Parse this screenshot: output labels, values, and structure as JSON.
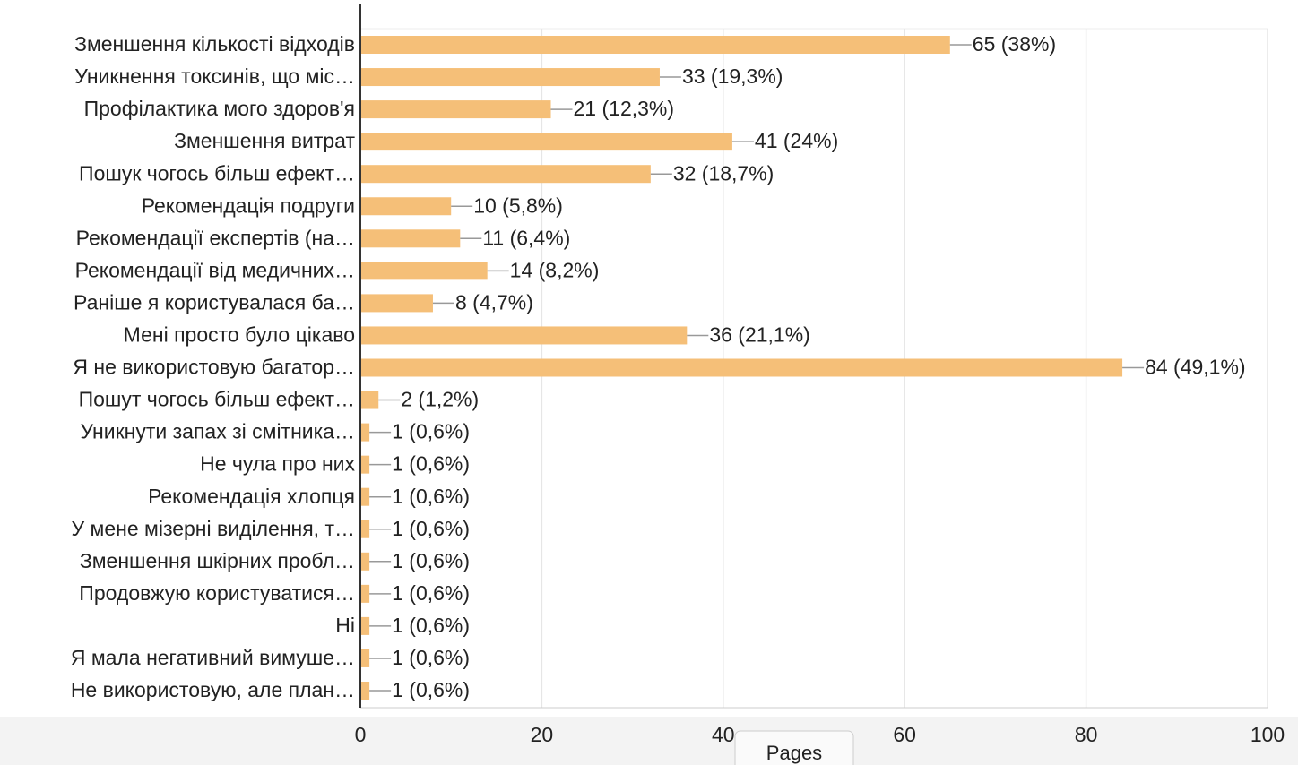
{
  "chart_data": {
    "type": "bar",
    "orientation": "horizontal",
    "categories": [
      "Зменшення кількості відходів",
      "Уникнення токсинів, що міс…",
      "Профілактика мого здоров'я",
      "Зменшення витрат",
      "Пошук чогось більш ефект…",
      "Рекомендація подруги",
      "Рекомендації експертів (на…",
      "Рекомендації від медичних…",
      "Раніше я користувалася ба…",
      "Мені просто було цікаво",
      "Я не використовую багатор…",
      "Пошут чогось більш ефект…",
      "Уникнути запах зі смітника…",
      "Не чула про них",
      "Рекомендація хлопця",
      "У мене мізерні виділення, т…",
      "Зменшення шкірних пробл…",
      "Продовжую користуватися…",
      "Ні",
      "Я мала негативний вимуше…",
      "Не використовую, але план…"
    ],
    "values": [
      65,
      33,
      21,
      41,
      32,
      10,
      11,
      14,
      8,
      36,
      84,
      2,
      1,
      1,
      1,
      1,
      1,
      1,
      1,
      1,
      1
    ],
    "value_labels": [
      "65 (38%)",
      "33 (19,3%)",
      "21 (12,3%)",
      "41 (24%)",
      "32 (18,7%)",
      "10 (5,8%)",
      "11 (6,4%)",
      "14 (8,2%)",
      "8 (4,7%)",
      "36 (21,1%)",
      "84 (49,1%)",
      "2 (1,2%)",
      "1 (0,6%)",
      "1 (0,6%)",
      "1 (0,6%)",
      "1 (0,6%)",
      "1 (0,6%)",
      "1 (0,6%)",
      "1 (0,6%)",
      "1 (0,6%)",
      "1 (0,6%)"
    ],
    "color": "#f5bf78",
    "xlim": [
      0,
      100
    ],
    "xticks": [
      0,
      20,
      40,
      60,
      80,
      100
    ],
    "grid": true
  },
  "pages_tab": "Pages"
}
